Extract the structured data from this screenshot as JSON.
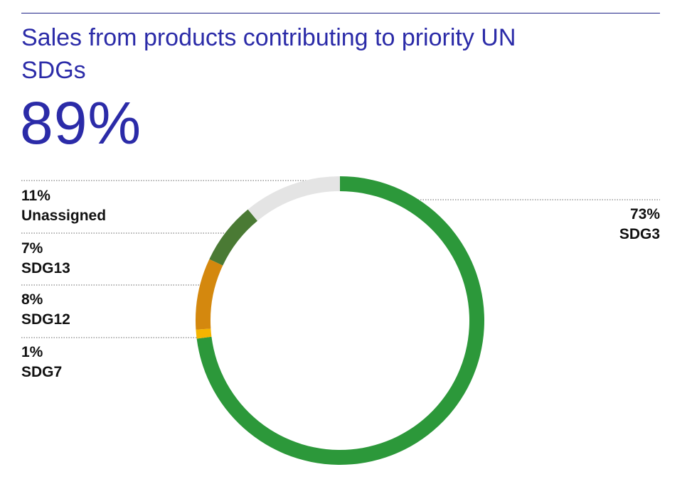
{
  "title": "Sales from products contributing to priority UN SDGs",
  "headline": "89%",
  "chart_data": {
    "type": "pie",
    "categories": [
      "SDG3",
      "SDG7",
      "SDG12",
      "SDG13",
      "Unassigned"
    ],
    "values": [
      73,
      1,
      8,
      7,
      11
    ],
    "labels": [
      "73%",
      "1%",
      "8%",
      "7%",
      "11%"
    ],
    "colors": [
      "#2c983a",
      "#f4b400",
      "#d4880e",
      "#4a7a34",
      "#e4e4e4"
    ],
    "donut": true,
    "start": "top",
    "direction": "clockwise"
  },
  "legend": {
    "sdg3": {
      "value": "73%",
      "name": "SDG3"
    },
    "unassigned": {
      "value": "11%",
      "name": "Unassigned"
    },
    "sdg13": {
      "value": "7%",
      "name": "SDG13"
    },
    "sdg12": {
      "value": "8%",
      "name": "SDG12"
    },
    "sdg7": {
      "value": "1%",
      "name": "SDG7"
    }
  },
  "colors": {
    "title": "#2b2ba8",
    "rule": "#1f2287",
    "text": "#111111",
    "leader": "#666666"
  }
}
